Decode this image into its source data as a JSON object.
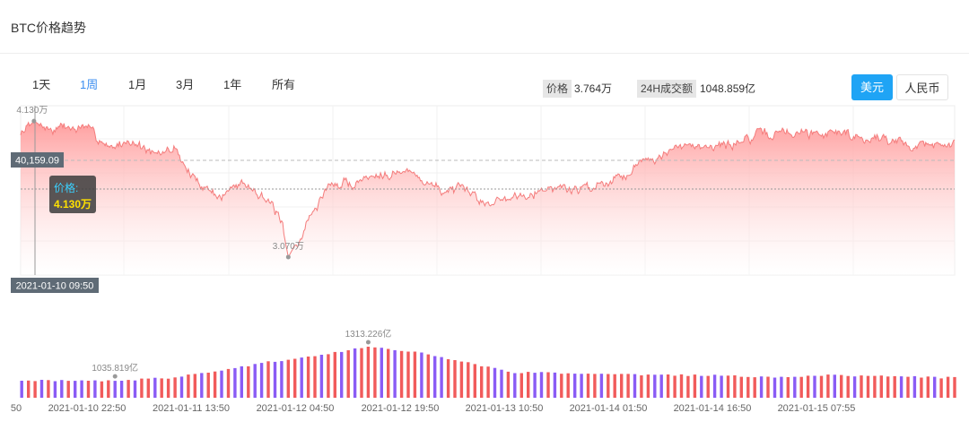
{
  "header": {
    "title": "BTC价格趋势"
  },
  "range_tabs": [
    {
      "label": "1天",
      "active": false
    },
    {
      "label": "1周",
      "active": true
    },
    {
      "label": "1月",
      "active": false
    },
    {
      "label": "3月",
      "active": false
    },
    {
      "label": "1年",
      "active": false
    },
    {
      "label": "所有",
      "active": false
    }
  ],
  "stats": {
    "price_label": "价格",
    "price_value": "3.764万",
    "volume_label": "24H成交额",
    "volume_value": "1048.859亿"
  },
  "currency": {
    "usd_label": "美元",
    "cny_label": "人民币",
    "selected": "usd"
  },
  "colors": {
    "accent": "#1fa4f5",
    "tab_active": "#3b8ef0",
    "price_line": "#f47c7c",
    "area_top": "#ff9a9a",
    "volume_up": "#f15b5b",
    "volume_down": "#8a5cf5",
    "tooltip_value": "#ffe100"
  },
  "tooltip": {
    "label": "价格:",
    "value": "4.130万"
  },
  "cursor": {
    "date_label": "2021-01-10 09:50",
    "price_label": "40,159.09"
  },
  "chart_data": {
    "type": "area",
    "price_series": {
      "name": "价格",
      "unit": "万",
      "start": "2021-01-10 07:50",
      "end": "2021-01-16 04:00",
      "step_minutes": 10,
      "y_range": [
        2.93,
        4.25
      ],
      "max": {
        "value": 4.13,
        "label": "4.130万",
        "time": "2021-01-10 09:50"
      },
      "min": {
        "value": 3.07,
        "label": "3.070万",
        "time": "2021-01-12 00:00"
      },
      "keypoints": [
        [
          "2021-01-10 07:50",
          4.02
        ],
        [
          "2021-01-10 09:50",
          4.13
        ],
        [
          "2021-01-10 12:00",
          4.06
        ],
        [
          "2021-01-10 17:00",
          4.08
        ],
        [
          "2021-01-10 21:00",
          3.95
        ],
        [
          "2021-01-11 00:30",
          3.97
        ],
        [
          "2021-01-11 04:00",
          3.85
        ],
        [
          "2021-01-11 07:00",
          3.92
        ],
        [
          "2021-01-11 10:00",
          3.67
        ],
        [
          "2021-01-11 14:00",
          3.54
        ],
        [
          "2021-01-11 17:00",
          3.67
        ],
        [
          "2021-01-11 20:00",
          3.58
        ],
        [
          "2021-01-11 23:00",
          3.34
        ],
        [
          "2021-01-12 00:00",
          3.07
        ],
        [
          "2021-01-12 03:00",
          3.35
        ],
        [
          "2021-01-12 06:00",
          3.63
        ],
        [
          "2021-01-12 10:00",
          3.65
        ],
        [
          "2021-01-12 14:00",
          3.75
        ],
        [
          "2021-01-12 19:00",
          3.72
        ],
        [
          "2021-01-12 23:00",
          3.6
        ],
        [
          "2021-01-13 03:00",
          3.55
        ],
        [
          "2021-01-13 07:00",
          3.5
        ],
        [
          "2021-01-13 10:00",
          3.55
        ],
        [
          "2021-01-13 14:00",
          3.61
        ],
        [
          "2021-01-13 18:00",
          3.6
        ],
        [
          "2021-01-13 22:00",
          3.62
        ],
        [
          "2021-01-14 02:00",
          3.72
        ],
        [
          "2021-01-14 06:00",
          3.85
        ],
        [
          "2021-01-14 10:00",
          3.9
        ],
        [
          "2021-01-14 14:00",
          3.93
        ],
        [
          "2021-01-14 18:00",
          3.96
        ],
        [
          "2021-01-14 22:00",
          4.0
        ],
        [
          "2021-01-15 02:00",
          4.05
        ],
        [
          "2021-01-15 06:00",
          4.05
        ],
        [
          "2021-01-15 10:00",
          4.06
        ],
        [
          "2021-01-15 14:00",
          4.0
        ],
        [
          "2021-01-15 18:00",
          3.98
        ],
        [
          "2021-01-15 22:00",
          3.95
        ],
        [
          "2021-01-16 04:00",
          3.94
        ]
      ]
    },
    "volume_series": {
      "name": "成交额",
      "unit": "亿",
      "interval_minutes": 60,
      "max": {
        "value": 1313.226,
        "label": "1313.226亿",
        "time": "2021-01-12 12:00"
      },
      "min": {
        "value": 1035.819,
        "label": "1035.819亿",
        "time": "2021-01-10 22:00"
      },
      "keypoints": [
        [
          "2021-01-10 08:00",
          1040
        ],
        [
          "2021-01-10 22:00",
          1035.819
        ],
        [
          "2021-01-11 06:00",
          1060
        ],
        [
          "2021-01-11 13:00",
          1110
        ],
        [
          "2021-01-11 20:00",
          1180
        ],
        [
          "2021-01-12 04:00",
          1240
        ],
        [
          "2021-01-12 12:00",
          1313.226
        ],
        [
          "2021-01-12 20:00",
          1260
        ],
        [
          "2021-01-13 04:00",
          1170
        ],
        [
          "2021-01-13 10:00",
          1105
        ],
        [
          "2021-01-13 20:00",
          1095
        ],
        [
          "2021-01-14 06:00",
          1085
        ],
        [
          "2021-01-14 16:00",
          1078
        ],
        [
          "2021-01-15 02:00",
          1068
        ],
        [
          "2021-01-15 10:00",
          1082
        ],
        [
          "2021-01-15 18:00",
          1072
        ],
        [
          "2021-01-16 04:00",
          1060
        ]
      ]
    },
    "x_tick_labels": [
      "50",
      "2021-01-10 22:50",
      "2021-01-11 13:50",
      "2021-01-12 04:50",
      "2021-01-12 19:50",
      "2021-01-13 10:50",
      "2021-01-14 01:50",
      "2021-01-14 16:50",
      "2021-01-15 07:55"
    ],
    "grid": true,
    "legend": "none"
  }
}
